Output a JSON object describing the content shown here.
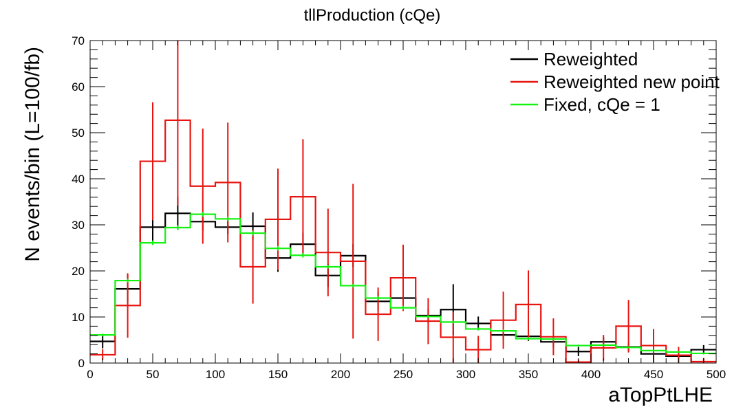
{
  "chart_data": {
    "type": "histogram-step",
    "title": "tllProduction (cQe)",
    "xlabel": "aTopPtLHE",
    "ylabel": "N events/bin (L=100/fb)",
    "xlim": [
      0,
      500
    ],
    "ylim": [
      0,
      70
    ],
    "bin_width": 20,
    "x_ticks": [
      0,
      50,
      100,
      150,
      200,
      250,
      300,
      350,
      400,
      450,
      500
    ],
    "y_ticks": [
      0,
      10,
      20,
      30,
      40,
      50,
      60,
      70
    ],
    "grid": false,
    "legend_position": "top-right",
    "bin_edges": [
      0,
      20,
      40,
      60,
      80,
      100,
      120,
      140,
      160,
      180,
      200,
      220,
      240,
      260,
      280,
      300,
      320,
      340,
      360,
      380,
      400,
      420,
      440,
      460,
      480,
      500
    ],
    "series": [
      {
        "name": "Reweighted",
        "color": "#000000",
        "values": [
          4.7,
          16.1,
          29.5,
          32.5,
          30.7,
          29.5,
          29.7,
          22.8,
          25.8,
          19.0,
          23.3,
          13.4,
          14.1,
          10.3,
          11.6,
          8.6,
          6.1,
          5.8,
          4.6,
          2.5,
          4.6,
          3.5,
          2.0,
          1.5,
          2.9
        ],
        "errors": [
          1.5,
          3.0,
          3.5,
          3.6,
          2.0,
          1.5,
          3.0,
          3.0,
          2.5,
          2.5,
          2.5,
          2.0,
          2.2,
          1.5,
          5.5,
          1.5,
          1.0,
          1.0,
          1.2,
          1.0,
          1.0,
          0.8,
          0.8,
          0.6,
          1.0
        ]
      },
      {
        "name": "Reweighted new point",
        "color": "#e8140f",
        "values": [
          1.8,
          12.5,
          43.8,
          52.7,
          38.4,
          39.2,
          20.9,
          31.2,
          36.1,
          24.0,
          22.1,
          10.6,
          18.5,
          9.1,
          5.6,
          2.9,
          9.3,
          12.7,
          5.7,
          0.2,
          3.3,
          8.0,
          3.8,
          1.7,
          0.3
        ],
        "errors": [
          1.2,
          7.0,
          12.8,
          18.5,
          12.5,
          13.0,
          8.0,
          11.0,
          12.5,
          9.5,
          16.8,
          5.8,
          7.2,
          5.0,
          5.5,
          3.0,
          6.2,
          7.4,
          4.0,
          0.6,
          2.8,
          5.7,
          3.6,
          1.8,
          0.8
        ]
      },
      {
        "name": "Fixed, cQe = 1",
        "color": "#12f20f",
        "values": [
          6.1,
          17.9,
          26.1,
          29.4,
          32.3,
          31.3,
          28.2,
          24.9,
          23.4,
          20.9,
          16.8,
          14.1,
          12.0,
          10.1,
          8.9,
          7.4,
          7.0,
          5.3,
          5.2,
          3.8,
          3.9,
          3.4,
          2.7,
          2.4,
          2.1
        ],
        "errors": [
          0.3,
          0.4,
          0.5,
          0.5,
          0.5,
          0.5,
          0.5,
          0.5,
          0.5,
          0.4,
          0.4,
          0.4,
          0.4,
          0.3,
          0.3,
          0.3,
          0.3,
          0.3,
          0.3,
          0.2,
          0.2,
          0.2,
          0.2,
          0.2,
          0.2
        ]
      }
    ]
  }
}
